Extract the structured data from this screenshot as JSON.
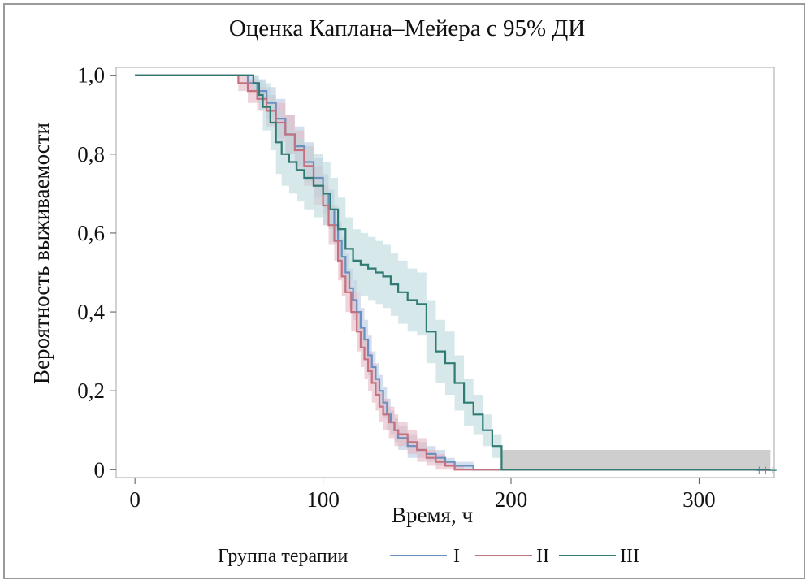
{
  "chart_data": {
    "type": "line",
    "subtype": "kaplan-meier step curves with 95% CI bands",
    "title": "Оценка Каплана–Мейера с 95% ДИ",
    "xlabel": "Время, ч",
    "ylabel": "Вероятность выживаемости",
    "xlim": [
      -10,
      340
    ],
    "ylim": [
      -0.02,
      1.02
    ],
    "x_ticks": [
      0,
      100,
      200,
      300
    ],
    "x_tick_labels": [
      "0",
      "100",
      "200",
      "300"
    ],
    "y_ticks": [
      0,
      0.2,
      0.4,
      0.6,
      0.8,
      1.0
    ],
    "y_tick_labels": [
      "0",
      "0,2",
      "0,4",
      "0,6",
      "0,8",
      "1,0"
    ],
    "legend": {
      "title": "Группа терапии",
      "position": "bottom",
      "entries": [
        "I",
        "II",
        "III"
      ]
    },
    "series": [
      {
        "name": "I",
        "color": "#6b8fbf",
        "band_color": "#b8c8e0",
        "x": [
          0,
          55,
          60,
          65,
          70,
          75,
          80,
          85,
          90,
          95,
          100,
          103,
          106,
          108,
          110,
          112,
          114,
          116,
          118,
          120,
          122,
          124,
          126,
          128,
          130,
          132,
          134,
          136,
          138,
          140,
          145,
          150,
          155,
          160,
          165,
          170,
          175,
          180,
          185,
          195,
          338
        ],
        "y": [
          1.0,
          1.0,
          0.98,
          0.96,
          0.93,
          0.89,
          0.85,
          0.82,
          0.78,
          0.74,
          0.7,
          0.66,
          0.62,
          0.58,
          0.54,
          0.5,
          0.46,
          0.43,
          0.4,
          0.36,
          0.33,
          0.29,
          0.26,
          0.23,
          0.2,
          0.17,
          0.14,
          0.12,
          0.1,
          0.08,
          0.06,
          0.05,
          0.04,
          0.03,
          0.02,
          0.01,
          0.01,
          0.0,
          0.0,
          0.0,
          0.0
        ],
        "ci_halfwidth": [
          0.0,
          0.0,
          0.02,
          0.03,
          0.04,
          0.05,
          0.05,
          0.05,
          0.05,
          0.05,
          0.05,
          0.05,
          0.05,
          0.05,
          0.05,
          0.05,
          0.05,
          0.05,
          0.05,
          0.05,
          0.05,
          0.05,
          0.04,
          0.04,
          0.04,
          0.04,
          0.04,
          0.03,
          0.03,
          0.03,
          0.03,
          0.02,
          0.02,
          0.02,
          0.01,
          0.01,
          0.01,
          0.0,
          0.0,
          0.0,
          0.0
        ]
      },
      {
        "name": "II",
        "color": "#c4717f",
        "band_color": "#e4b8c3",
        "x": [
          0,
          50,
          55,
          60,
          65,
          70,
          75,
          80,
          85,
          90,
          95,
          100,
          103,
          106,
          108,
          110,
          112,
          115,
          118,
          120,
          122,
          124,
          126,
          128,
          130,
          132,
          135,
          138,
          140,
          145,
          150,
          155,
          160,
          165,
          170,
          175,
          180,
          338
        ],
        "y": [
          1.0,
          1.0,
          0.98,
          0.96,
          0.94,
          0.91,
          0.88,
          0.85,
          0.81,
          0.77,
          0.72,
          0.67,
          0.62,
          0.58,
          0.53,
          0.49,
          0.45,
          0.4,
          0.35,
          0.31,
          0.28,
          0.25,
          0.22,
          0.19,
          0.16,
          0.14,
          0.12,
          0.1,
          0.09,
          0.07,
          0.05,
          0.03,
          0.02,
          0.01,
          0.0,
          0.0,
          0.0,
          0.0
        ],
        "ci_halfwidth": [
          0.0,
          0.0,
          0.02,
          0.03,
          0.03,
          0.04,
          0.05,
          0.05,
          0.05,
          0.05,
          0.05,
          0.05,
          0.05,
          0.05,
          0.05,
          0.05,
          0.05,
          0.05,
          0.05,
          0.05,
          0.05,
          0.05,
          0.05,
          0.04,
          0.04,
          0.04,
          0.04,
          0.04,
          0.03,
          0.03,
          0.03,
          0.02,
          0.02,
          0.01,
          0.01,
          0.0,
          0.0,
          0.0
        ]
      },
      {
        "name": "III",
        "color": "#2f7a73",
        "band_color": "#bcd8de",
        "x": [
          0,
          60,
          63,
          66,
          68,
          72,
          75,
          78,
          82,
          86,
          90,
          95,
          100,
          104,
          108,
          112,
          116,
          120,
          124,
          128,
          132,
          136,
          140,
          145,
          150,
          155,
          160,
          165,
          170,
          175,
          180,
          185,
          190,
          195,
          338
        ],
        "y": [
          1.0,
          1.0,
          0.98,
          0.95,
          0.92,
          0.88,
          0.83,
          0.8,
          0.78,
          0.76,
          0.74,
          0.72,
          0.7,
          0.66,
          0.61,
          0.56,
          0.53,
          0.52,
          0.51,
          0.5,
          0.49,
          0.47,
          0.45,
          0.43,
          0.42,
          0.35,
          0.3,
          0.27,
          0.22,
          0.17,
          0.14,
          0.1,
          0.06,
          0.0,
          0.0
        ],
        "ci_halfwidth": [
          0.0,
          0.0,
          0.02,
          0.04,
          0.06,
          0.07,
          0.08,
          0.08,
          0.08,
          0.08,
          0.08,
          0.08,
          0.08,
          0.08,
          0.08,
          0.08,
          0.08,
          0.08,
          0.08,
          0.08,
          0.08,
          0.08,
          0.08,
          0.08,
          0.08,
          0.08,
          0.08,
          0.08,
          0.07,
          0.06,
          0.05,
          0.04,
          0.03,
          0.0,
          0.0
        ]
      }
    ],
    "tail_band": {
      "x_from": 195,
      "x_to": 338,
      "y_low": 0.0,
      "y_high": 0.05,
      "color": "#c6c6c6"
    }
  }
}
